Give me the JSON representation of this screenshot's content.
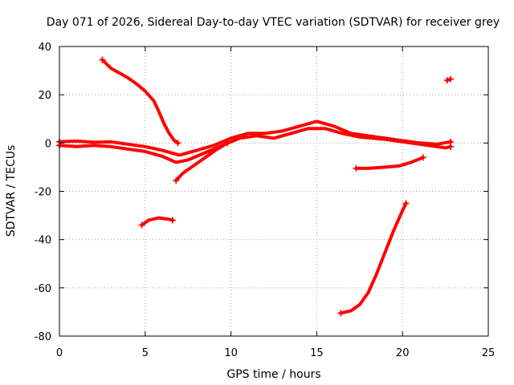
{
  "chart_data": {
    "type": "scatter",
    "title": "Day 071 of 2026, Sidereal Day-to-day VTEC variation (SDTVAR) for receiver grey",
    "xlabel": "GPS time / hours",
    "ylabel": "SDTVAR / TECUs",
    "xlim": [
      0,
      25
    ],
    "ylim": [
      -80,
      40
    ],
    "xticks": [
      0,
      5,
      10,
      15,
      20,
      25
    ],
    "yticks": [
      -80,
      -60,
      -40,
      -20,
      0,
      20,
      40
    ],
    "grid": true,
    "legend": "none",
    "color": "#ff0000",
    "marker": "plus",
    "series": [
      {
        "name": "main-band-upper",
        "points": [
          [
            0,
            0.5
          ],
          [
            1,
            0.8
          ],
          [
            2,
            0.3
          ],
          [
            3,
            0.5
          ],
          [
            4,
            -0.5
          ],
          [
            5,
            -1.5
          ],
          [
            6,
            -3
          ],
          [
            7,
            -5
          ],
          [
            8,
            -3
          ],
          [
            9,
            -1
          ],
          [
            10,
            2
          ],
          [
            11,
            4
          ],
          [
            12,
            4
          ],
          [
            13,
            5
          ],
          [
            14,
            7
          ],
          [
            15,
            9
          ],
          [
            16,
            7
          ],
          [
            17,
            4
          ],
          [
            18,
            3
          ],
          [
            19,
            2
          ],
          [
            20,
            1
          ],
          [
            21,
            0
          ],
          [
            22,
            -0.5
          ],
          [
            22.8,
            0.5
          ]
        ]
      },
      {
        "name": "main-band-lower",
        "points": [
          [
            0,
            -1
          ],
          [
            1,
            -1.5
          ],
          [
            2,
            -1
          ],
          [
            3,
            -1.5
          ],
          [
            4,
            -2.5
          ],
          [
            5,
            -3.5
          ],
          [
            6,
            -5.5
          ],
          [
            6.8,
            -8
          ],
          [
            7.5,
            -7
          ],
          [
            8.5,
            -4
          ],
          [
            9.5,
            -1
          ],
          [
            10.5,
            2
          ],
          [
            11.5,
            3
          ],
          [
            12.5,
            2
          ],
          [
            13.5,
            4
          ],
          [
            14.5,
            6
          ],
          [
            15.5,
            6
          ],
          [
            16.5,
            4
          ],
          [
            17.5,
            2.5
          ],
          [
            19,
            1.5
          ],
          [
            20.5,
            0
          ],
          [
            21.5,
            -1
          ],
          [
            22.5,
            -2
          ],
          [
            22.8,
            -1.5
          ]
        ]
      },
      {
        "name": "falling-arc",
        "points": [
          [
            2.5,
            34.5
          ],
          [
            3,
            31
          ],
          [
            3.5,
            29
          ],
          [
            4,
            27
          ],
          [
            4.5,
            24.5
          ],
          [
            5,
            21.5
          ],
          [
            5.5,
            17.5
          ],
          [
            5.8,
            13
          ],
          [
            6.1,
            8
          ],
          [
            6.4,
            4
          ],
          [
            6.7,
            1
          ],
          [
            6.9,
            0
          ]
        ]
      },
      {
        "name": "rising-track",
        "points": [
          [
            6.8,
            -15.5
          ],
          [
            7.2,
            -12.5
          ],
          [
            7.8,
            -9.5
          ],
          [
            8.5,
            -6
          ],
          [
            9.2,
            -2.5
          ],
          [
            9.8,
            0
          ]
        ]
      },
      {
        "name": "short-dip",
        "points": [
          [
            4.8,
            -34
          ],
          [
            5.2,
            -32
          ],
          [
            5.8,
            -31
          ],
          [
            6.3,
            -31.5
          ],
          [
            6.6,
            -32
          ]
        ]
      },
      {
        "name": "mid-segment",
        "points": [
          [
            17.3,
            -10.5
          ],
          [
            18,
            -10.5
          ],
          [
            19,
            -10
          ],
          [
            19.8,
            -9.5
          ],
          [
            20.5,
            -8
          ],
          [
            21.2,
            -6
          ]
        ]
      },
      {
        "name": "steep-rise",
        "points": [
          [
            16.4,
            -70.5
          ],
          [
            17,
            -69.5
          ],
          [
            17.5,
            -67
          ],
          [
            18,
            -62
          ],
          [
            18.5,
            -54
          ],
          [
            19,
            -45
          ],
          [
            19.5,
            -36
          ],
          [
            20,
            -28
          ],
          [
            20.2,
            -25
          ]
        ]
      },
      {
        "name": "outlier",
        "points": [
          [
            22.8,
            26.5
          ],
          [
            22.6,
            26
          ]
        ]
      }
    ]
  }
}
